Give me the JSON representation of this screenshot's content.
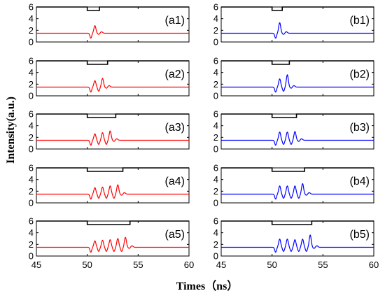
{
  "figure": {
    "ylabel": "Intensity(a.u.)",
    "xlabel": "Times（ns）"
  },
  "chart_data": {
    "type": "line",
    "layout": "grid 5 rows x 2 columns",
    "xlabel": "Times（ns）",
    "ylabel": "Intensity(a.u.)",
    "xlim": [
      45,
      60
    ],
    "ylim": [
      0,
      6
    ],
    "xticks": [
      45,
      50,
      55,
      60
    ],
    "yticks": [
      0,
      2,
      4,
      6
    ],
    "baseline": 1.5,
    "gate_level": 6,
    "gate_depth": 0.6,
    "gate_start": 50,
    "pulse_start": 50.3,
    "pulse_period": 0.75,
    "colors": {
      "a": "#ff0000",
      "b": "#0000ff",
      "gate": "#000000"
    },
    "panels": [
      {
        "label": "(a1)",
        "column": "a",
        "row": 1,
        "gate_end": 51.2,
        "peaks": [
          2.8
        ]
      },
      {
        "label": "(a2)",
        "column": "a",
        "row": 2,
        "gate_end": 52.0,
        "peaks": [
          2.6,
          3.0
        ]
      },
      {
        "label": "(a3)",
        "column": "a",
        "row": 3,
        "gate_end": 52.8,
        "peaks": [
          2.6,
          2.8,
          3.1
        ]
      },
      {
        "label": "(a4)",
        "column": "a",
        "row": 4,
        "gate_end": 53.5,
        "peaks": [
          2.6,
          2.7,
          2.9,
          3.1
        ]
      },
      {
        "label": "(a5)",
        "column": "a",
        "row": 5,
        "gate_end": 54.2,
        "peaks": [
          2.6,
          2.7,
          2.8,
          3.0,
          3.2
        ]
      },
      {
        "label": "(b1)",
        "column": "b",
        "row": 1,
        "gate_end": 51.0,
        "peaks": [
          3.3
        ]
      },
      {
        "label": "(b2)",
        "column": "b",
        "row": 2,
        "gate_end": 51.7,
        "peaks": [
          2.9,
          3.6
        ]
      },
      {
        "label": "(b3)",
        "column": "b",
        "row": 3,
        "gate_end": 52.4,
        "peaks": [
          2.9,
          2.9,
          3.0
        ]
      },
      {
        "label": "(b4)",
        "column": "b",
        "row": 4,
        "gate_end": 53.2,
        "peaks": [
          2.9,
          2.9,
          2.9,
          3.3
        ]
      },
      {
        "label": "(b5)",
        "column": "b",
        "row": 5,
        "gate_end": 53.9,
        "peaks": [
          2.9,
          2.9,
          2.8,
          2.9,
          3.6
        ]
      }
    ]
  }
}
